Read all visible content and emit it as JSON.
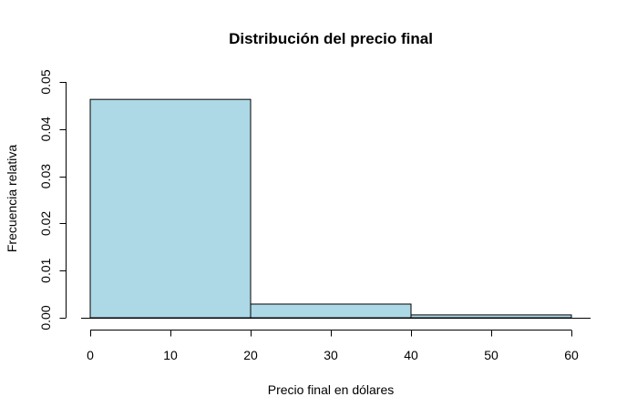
{
  "chart_data": {
    "type": "bar",
    "title": "Distribución del precio final",
    "xlabel": "Precio final en dólares",
    "ylabel": "Frecuencia relativa",
    "bins": [
      {
        "x0": 0,
        "x1": 20,
        "value": 0.0463
      },
      {
        "x0": 20,
        "x1": 40,
        "value": 0.0029
      },
      {
        "x0": 40,
        "x1": 60,
        "value": 0.0006
      }
    ],
    "xlim": [
      0,
      60
    ],
    "ylim": [
      0,
      0.05
    ],
    "x_ticks": [
      0,
      10,
      20,
      30,
      40,
      50,
      60
    ],
    "y_ticks": [
      "0.00",
      "0.01",
      "0.02",
      "0.03",
      "0.04",
      "0.05"
    ],
    "grid": false,
    "bar_color": "#ADD8E6"
  }
}
